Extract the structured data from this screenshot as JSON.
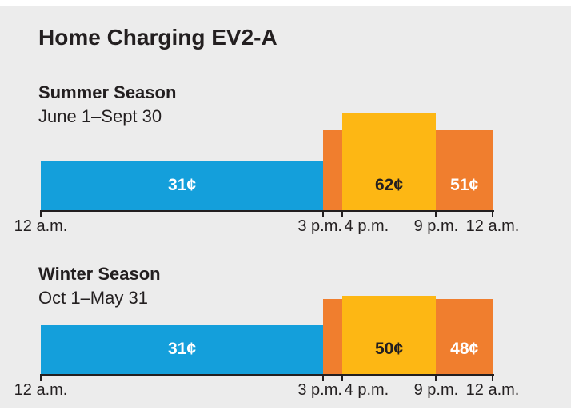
{
  "page": {
    "title": "Home Charging EV2-A",
    "card_background": "#ececec"
  },
  "colors": {
    "blue": "#149fdb",
    "orange": "#f07e2e",
    "yellow": "#fdb714",
    "dark_text": "#231f20",
    "light_text": "#ffffff",
    "axis": "#231f20"
  },
  "chart_data": [
    {
      "type": "bar",
      "title": "Summer Season",
      "subtitle": "June 1–Sept 30",
      "x_unit": "hour_of_day",
      "x_range": [
        0,
        24
      ],
      "tick_hours": [
        0,
        15,
        16,
        21,
        24
      ],
      "tick_labels": [
        "12 a.m.",
        "3 p.m.",
        "4 p.m.",
        "9 p.m.",
        "12 a.m."
      ],
      "segments": [
        {
          "start_hour": 0,
          "end_hour": 15,
          "rate_cents": 31,
          "label": "31¢",
          "color": "blue",
          "label_color": "light_text"
        },
        {
          "start_hour": 15,
          "end_hour": 16,
          "rate_cents": 51,
          "label": "",
          "color": "orange",
          "label_color": "light_text"
        },
        {
          "start_hour": 16,
          "end_hour": 21,
          "rate_cents": 62,
          "label": "62¢",
          "color": "yellow",
          "label_color": "dark_text"
        },
        {
          "start_hour": 21,
          "end_hour": 24,
          "rate_cents": 51,
          "label": "51¢",
          "color": "orange",
          "label_color": "light_text"
        }
      ]
    },
    {
      "type": "bar",
      "title": "Winter Season",
      "subtitle": "Oct 1–May 31",
      "x_unit": "hour_of_day",
      "x_range": [
        0,
        24
      ],
      "tick_hours": [
        0,
        15,
        16,
        21,
        24
      ],
      "tick_labels": [
        "12 a.m.",
        "3 p.m.",
        "4 p.m.",
        "9 p.m.",
        "12 a.m."
      ],
      "segments": [
        {
          "start_hour": 0,
          "end_hour": 15,
          "rate_cents": 31,
          "label": "31¢",
          "color": "blue",
          "label_color": "light_text"
        },
        {
          "start_hour": 15,
          "end_hour": 16,
          "rate_cents": 48,
          "label": "",
          "color": "orange",
          "label_color": "light_text"
        },
        {
          "start_hour": 16,
          "end_hour": 21,
          "rate_cents": 50,
          "label": "50¢",
          "color": "yellow",
          "label_color": "dark_text"
        },
        {
          "start_hour": 21,
          "end_hour": 24,
          "rate_cents": 48,
          "label": "48¢",
          "color": "orange",
          "label_color": "light_text"
        }
      ]
    }
  ]
}
